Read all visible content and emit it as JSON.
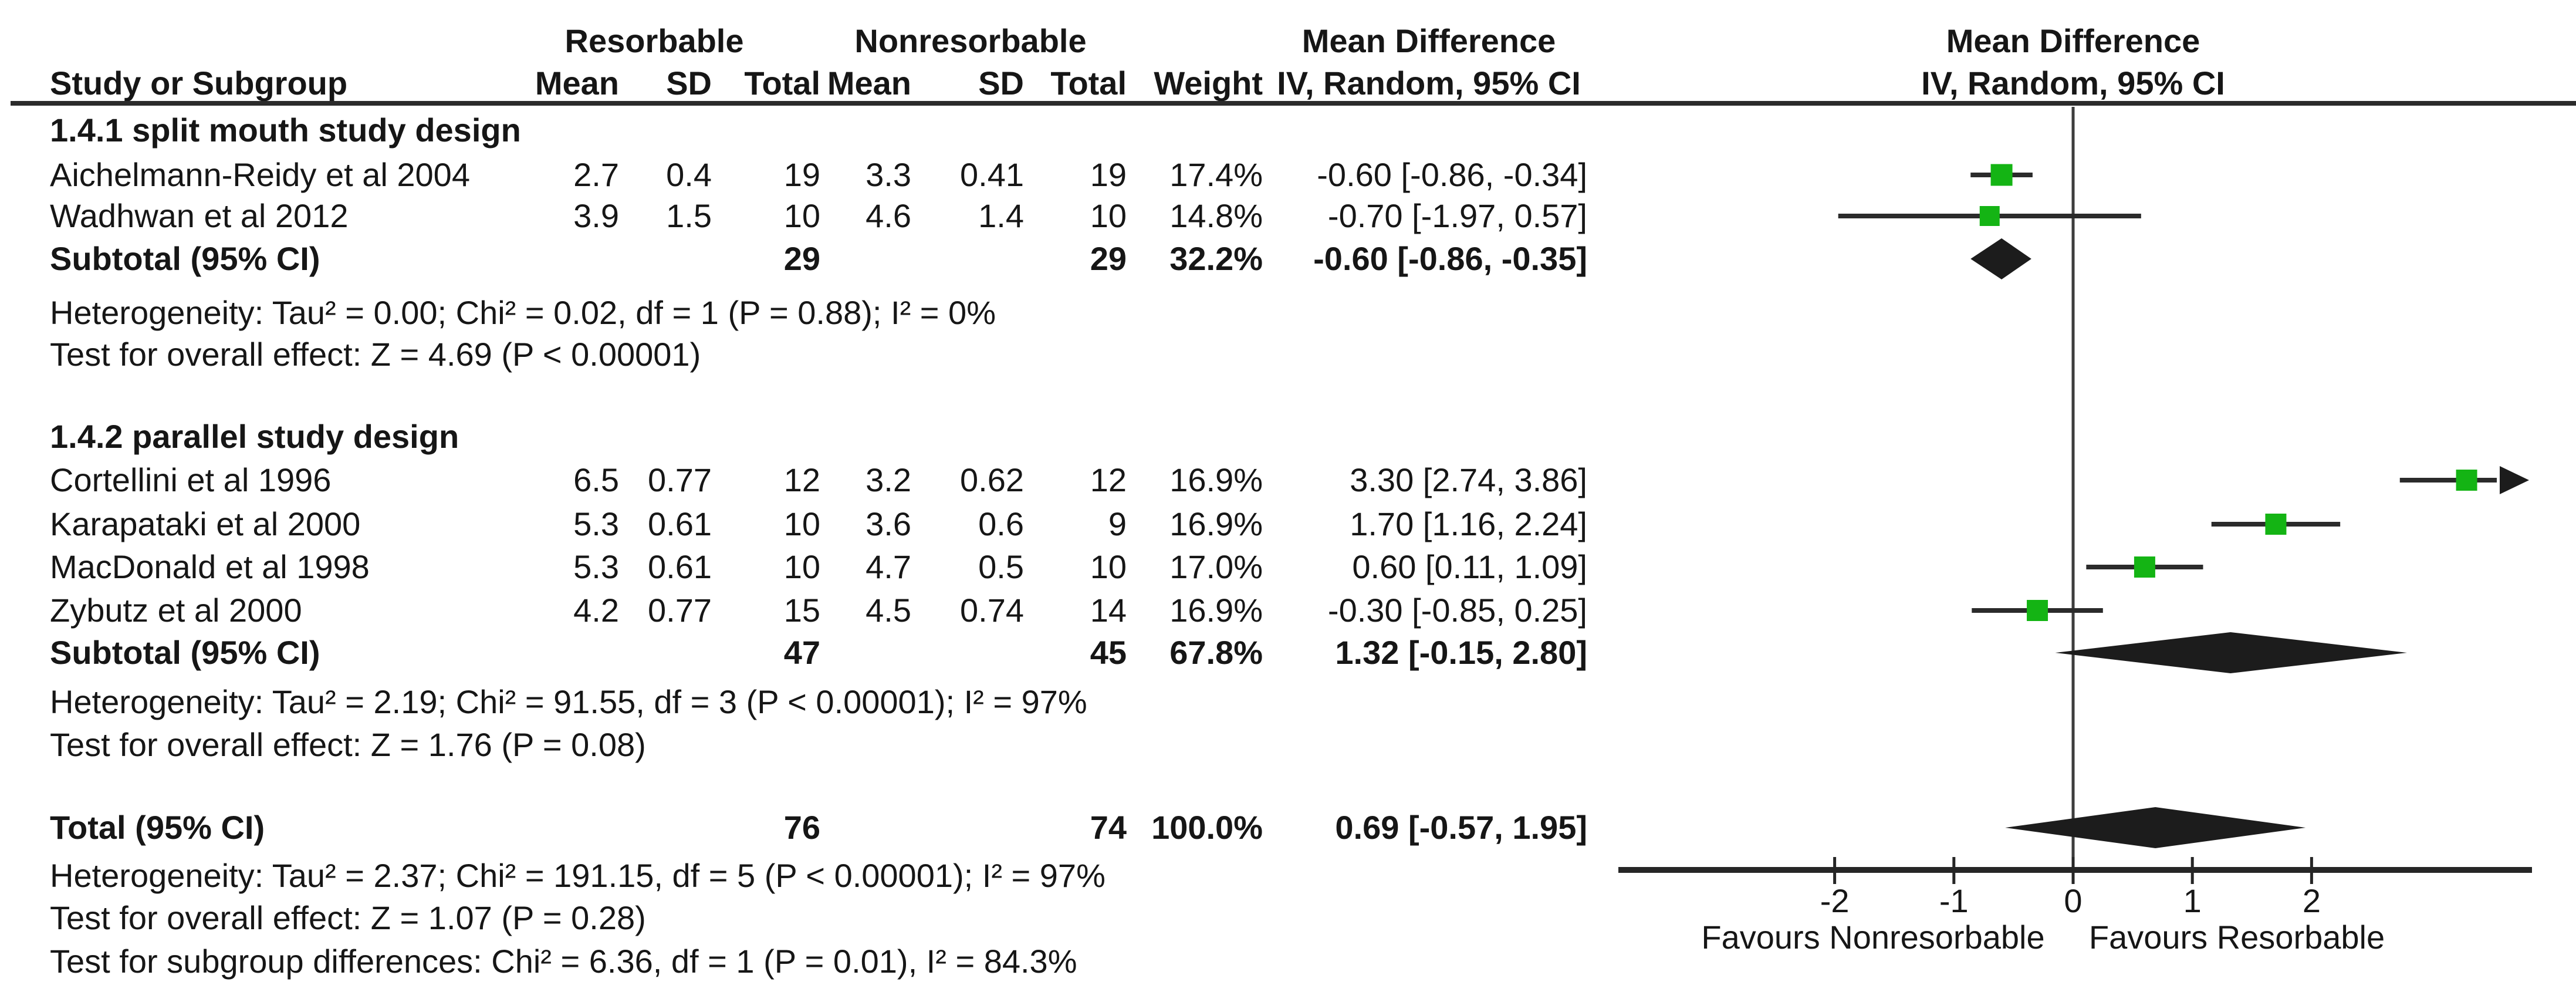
{
  "headers": {
    "group1": "Resorbable",
    "group2": "Nonresorbable",
    "study_col": "Study or Subgroup",
    "mean": "Mean",
    "sd": "SD",
    "total": "Total",
    "weight": "Weight",
    "md": "Mean Difference",
    "md_method": "IV, Random, 95% CI"
  },
  "colors": {
    "marker_green": "#14b414",
    "ink_black": "#1c1c1c",
    "line_gray": "#2b2b2b"
  },
  "chart_data": {
    "type": "forest",
    "effect_measure": "Mean Difference (IV, Random, 95% CI)",
    "x_axis": {
      "ticks": [
        -2,
        -1,
        0,
        1,
        2
      ],
      "range": [
        -3.8,
        3.85
      ],
      "left_label": "Favours Nonresorbable",
      "right_label": "Favours Resorbable"
    },
    "subgroups": [
      {
        "label": "1.4.1 split mouth study design",
        "studies": [
          {
            "name": "Aichelmann-Reidy et al 2004",
            "res_mean": "2.7",
            "res_sd": "0.4",
            "res_total": "19",
            "non_mean": "3.3",
            "non_sd": "0.41",
            "non_total": "19",
            "weight": "17.4%",
            "ci_text": "-0.60 [-0.86, -0.34]",
            "md": -0.6,
            "lo": -0.86,
            "hi": -0.34,
            "weight_pct": 17.4
          },
          {
            "name": "Wadhwan et al 2012",
            "res_mean": "3.9",
            "res_sd": "1.5",
            "res_total": "10",
            "non_mean": "4.6",
            "non_sd": "1.4",
            "non_total": "10",
            "weight": "14.8%",
            "ci_text": "-0.70 [-1.97, 0.57]",
            "md": -0.7,
            "lo": -1.97,
            "hi": 0.57,
            "weight_pct": 14.8
          }
        ],
        "subtotal": {
          "label": "Subtotal (95% CI)",
          "res_total": "29",
          "non_total": "29",
          "weight": "32.2%",
          "ci_text": "-0.60 [-0.86, -0.35]",
          "md": -0.6,
          "lo": -0.86,
          "hi": -0.35
        },
        "heterogeneity": "Heterogeneity: Tau² = 0.00; Chi² = 0.02, df = 1 (P = 0.88); I² = 0%",
        "overall_effect": "Test for overall effect: Z = 4.69 (P < 0.00001)"
      },
      {
        "label": "1.4.2 parallel study design",
        "studies": [
          {
            "name": "Cortellini et al 1996",
            "res_mean": "6.5",
            "res_sd": "0.77",
            "res_total": "12",
            "non_mean": "3.2",
            "non_sd": "0.62",
            "non_total": "12",
            "weight": "16.9%",
            "ci_text": "3.30 [2.74, 3.86]",
            "md": 3.3,
            "lo": 2.74,
            "hi": 3.86,
            "weight_pct": 16.9
          },
          {
            "name": "Karapataki et al 2000",
            "res_mean": "5.3",
            "res_sd": "0.61",
            "res_total": "10",
            "non_mean": "3.6",
            "non_sd": "0.6",
            "non_total": "9",
            "weight": "16.9%",
            "ci_text": "1.70 [1.16, 2.24]",
            "md": 1.7,
            "lo": 1.16,
            "hi": 2.24,
            "weight_pct": 16.9
          },
          {
            "name": "MacDonald et al 1998",
            "res_mean": "5.3",
            "res_sd": "0.61",
            "res_total": "10",
            "non_mean": "4.7",
            "non_sd": "0.5",
            "non_total": "10",
            "weight": "17.0%",
            "ci_text": "0.60 [0.11, 1.09]",
            "md": 0.6,
            "lo": 0.11,
            "hi": 1.09,
            "weight_pct": 17.0
          },
          {
            "name": "Zybutz et al 2000",
            "res_mean": "4.2",
            "res_sd": "0.77",
            "res_total": "15",
            "non_mean": "4.5",
            "non_sd": "0.74",
            "non_total": "14",
            "weight": "16.9%",
            "ci_text": "-0.30 [-0.85, 0.25]",
            "md": -0.3,
            "lo": -0.85,
            "hi": 0.25,
            "weight_pct": 16.9
          }
        ],
        "subtotal": {
          "label": "Subtotal (95% CI)",
          "res_total": "47",
          "non_total": "45",
          "weight": "67.8%",
          "ci_text": "1.32 [-0.15, 2.80]",
          "md": 1.32,
          "lo": -0.15,
          "hi": 2.8
        },
        "heterogeneity": "Heterogeneity: Tau² = 2.19; Chi² = 91.55, df = 3 (P < 0.00001); I² = 97%",
        "overall_effect": "Test for overall effect: Z = 1.76 (P = 0.08)"
      }
    ],
    "total": {
      "label": "Total (95% CI)",
      "res_total": "76",
      "non_total": "74",
      "weight": "100.0%",
      "ci_text": "0.69 [-0.57, 1.95]",
      "md": 0.69,
      "lo": -0.57,
      "hi": 1.95
    },
    "total_heterogeneity": "Heterogeneity: Tau² = 2.37; Chi² = 191.15, df = 5 (P < 0.00001); I² = 97%",
    "total_overall_effect": "Test for overall effect: Z = 1.07 (P = 0.28)",
    "subgroup_differences": "Test for subgroup differences: Chi² = 6.36, df = 1 (P = 0.01), I² = 84.3%"
  }
}
